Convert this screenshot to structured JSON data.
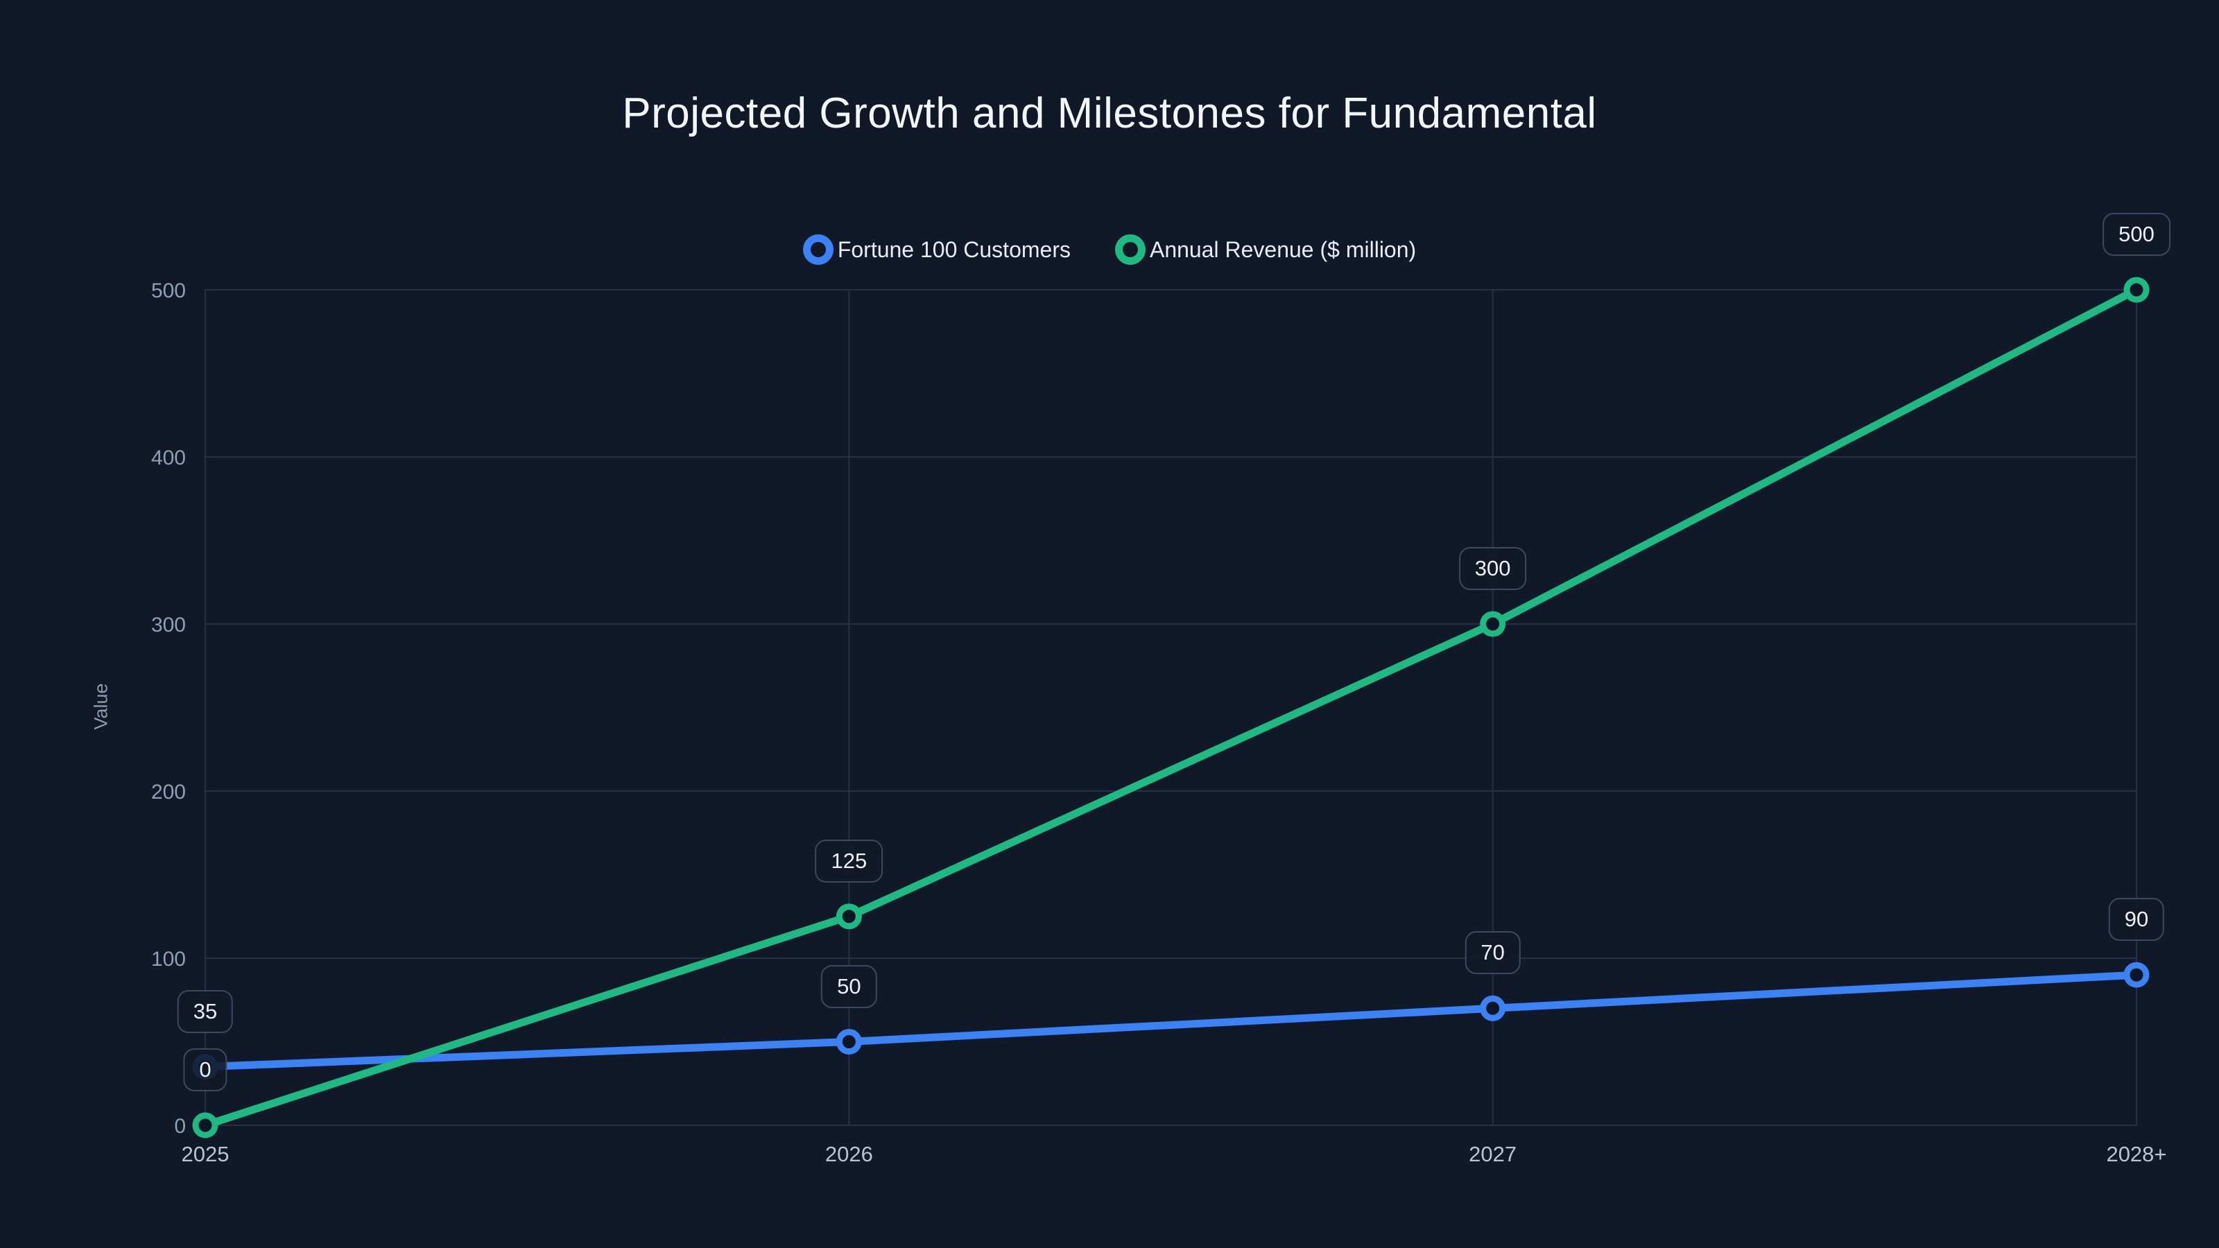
{
  "title": "Projected Growth and Milestones for Fundamental",
  "colors": {
    "background": "#111827",
    "grid": "#263048",
    "title_text": "#f3f6fa",
    "legend_text": "#e9edf4",
    "y_tick_text": "#8da0b6",
    "x_tick_text": "#bac4d2",
    "badge_border": "#3c4960",
    "badge_text": "#eef2f7",
    "point_fill": "#0e1524",
    "series_blue": "#3b82f6",
    "series_green": "#1fba83"
  },
  "chart_data": {
    "type": "line",
    "title": "Projected Growth and Milestones for Fundamental",
    "categories": [
      "2025",
      "2026",
      "2027",
      "2028+"
    ],
    "series": [
      {
        "name": "Fortune 100 Customers",
        "color": "#3b82f6",
        "values": [
          35,
          50,
          70,
          90
        ]
      },
      {
        "name": "Annual Revenue ($ million)",
        "color": "#1fba83",
        "values": [
          0,
          125,
          300,
          500
        ]
      }
    ],
    "point_labels_shown": true,
    "xlabel": "",
    "ylabel": "Value",
    "ylim": [
      0,
      500
    ],
    "yticks": [
      0,
      100,
      200,
      300,
      400,
      500
    ],
    "grid": true,
    "legend_position": "top-center",
    "marker_style": "open-circle"
  }
}
